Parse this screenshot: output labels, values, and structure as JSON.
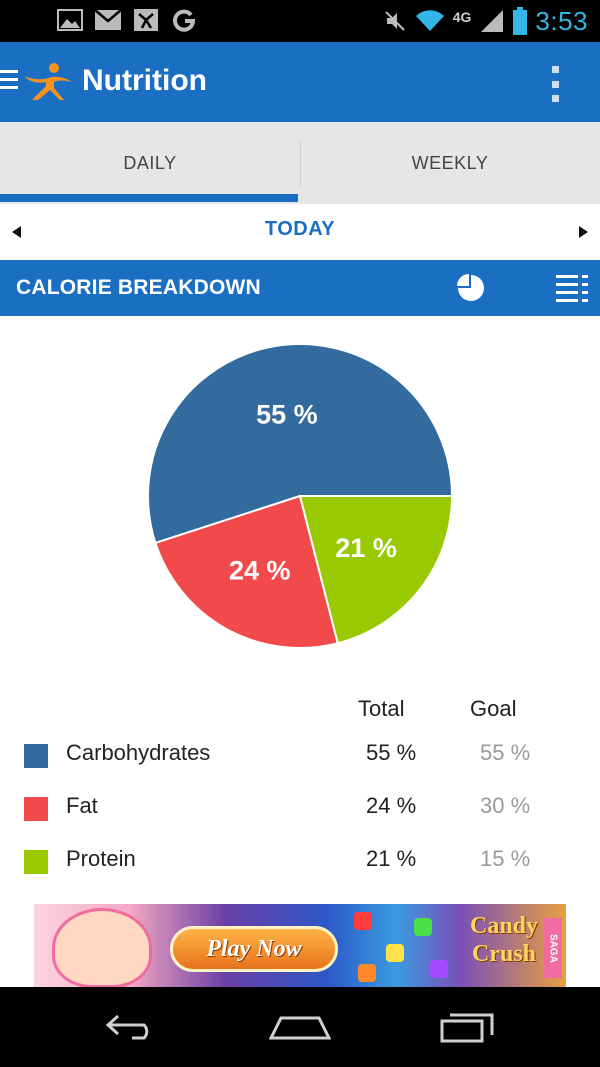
{
  "status_bar": {
    "time": "3:53",
    "network": "4G",
    "icons": [
      "gallery-icon",
      "gmail-icon",
      "myfitnesspal-icon",
      "google-icon",
      "mute-icon",
      "wifi-icon",
      "signal-icon",
      "battery-icon"
    ]
  },
  "app_bar": {
    "title": "Nutrition",
    "brand_color": "#1a6fc2",
    "icons": [
      "menu-icon",
      "myfitnesspal-logo",
      "overflow-menu-icon"
    ]
  },
  "tabs": [
    {
      "label": "DAILY",
      "selected": true
    },
    {
      "label": "WEEKLY",
      "selected": false
    }
  ],
  "date_nav": {
    "label": "TODAY"
  },
  "section": {
    "title": "CALORIE BREAKDOWN",
    "icons": [
      "pie-chart-icon",
      "list-view-icon"
    ]
  },
  "chart_data": {
    "type": "pie",
    "categories": [
      "Carbohydrates",
      "Fat",
      "Protein"
    ],
    "values": [
      55,
      24,
      21
    ],
    "labels": [
      "55 %",
      "24 %",
      "21 %"
    ],
    "colors": [
      "#336b9e",
      "#f24a4a",
      "#99c900"
    ],
    "title": "",
    "start_angle_deg": 0,
    "direction": "counterclockwise"
  },
  "table": {
    "headers": {
      "total": "Total",
      "goal": "Goal"
    },
    "rows": [
      {
        "name": "Carbohydrates",
        "total": "55 %",
        "goal": "55 %",
        "color": "#336b9e"
      },
      {
        "name": "Fat",
        "total": "24 %",
        "goal": "30 %",
        "color": "#f24a4a"
      },
      {
        "name": "Protein",
        "total": "21 %",
        "goal": "15 %",
        "color": "#99c900"
      }
    ]
  },
  "ad": {
    "button_label": "Play Now",
    "brand_line1": "Candy",
    "brand_line2": "Crush",
    "brand_tag": "SAGA"
  },
  "nav_bar": {
    "icons": [
      "back-icon",
      "home-icon",
      "recent-apps-icon"
    ]
  }
}
